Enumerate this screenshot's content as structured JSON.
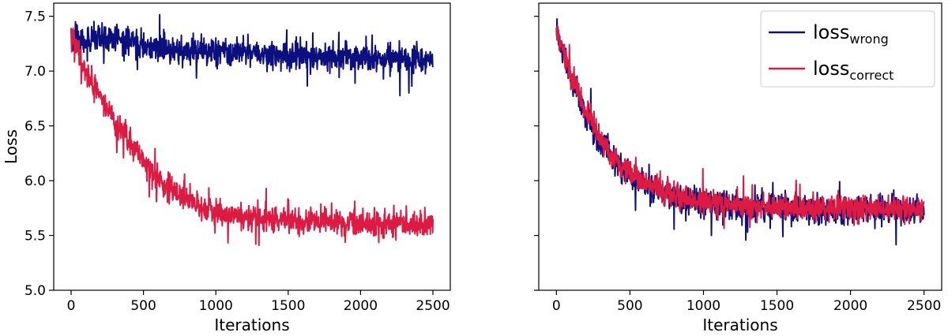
{
  "chart_data": [
    {
      "type": "line",
      "panel": "left",
      "xlabel": "Iterations",
      "ylabel": "Loss",
      "xlim": [
        -120,
        2620
      ],
      "ylim": [
        5.0,
        7.62
      ],
      "xticks": [
        0,
        500,
        1000,
        1500,
        2000,
        2500
      ],
      "xtick_labels": [
        "0",
        "500",
        "1000",
        "1500",
        "2000",
        "2500"
      ],
      "yticks": [
        5.0,
        5.5,
        6.0,
        6.5,
        7.0,
        7.5
      ],
      "ytick_labels": [
        "5.0",
        "5.5",
        "6.0",
        "6.5",
        "7.0",
        "7.5"
      ],
      "grid": false,
      "series": [
        {
          "name": "loss_wrong",
          "color": "#0c0f7e",
          "x": [
            0,
            100,
            200,
            300,
            400,
            500,
            600,
            700,
            800,
            900,
            1000,
            1100,
            1200,
            1300,
            1400,
            1500,
            1600,
            1700,
            1800,
            1900,
            2000,
            2100,
            2200,
            2300,
            2400,
            2500
          ],
          "y": [
            7.33,
            7.26,
            7.29,
            7.3,
            7.27,
            7.24,
            7.2,
            7.2,
            7.18,
            7.18,
            7.17,
            7.17,
            7.16,
            7.16,
            7.15,
            7.15,
            7.14,
            7.14,
            7.13,
            7.13,
            7.12,
            7.12,
            7.12,
            7.11,
            7.11,
            7.11
          ],
          "noise": 0.11
        },
        {
          "name": "loss_correct",
          "color": "#dc1a42",
          "x": [
            0,
            100,
            200,
            300,
            400,
            500,
            600,
            700,
            800,
            900,
            1000,
            1100,
            1200,
            1300,
            1400,
            1500,
            1600,
            1700,
            1800,
            1900,
            2000,
            2100,
            2200,
            2300,
            2400,
            2500
          ],
          "y": [
            7.35,
            7.0,
            6.76,
            6.55,
            6.35,
            6.18,
            6.03,
            5.92,
            5.82,
            5.76,
            5.72,
            5.69,
            5.67,
            5.66,
            5.65,
            5.64,
            5.63,
            5.63,
            5.62,
            5.62,
            5.61,
            5.61,
            5.61,
            5.6,
            5.6,
            5.6
          ],
          "noise": 0.1
        }
      ]
    },
    {
      "type": "line",
      "panel": "right",
      "xlabel": "Iterations",
      "ylabel": "",
      "xlim": [
        -120,
        2620
      ],
      "ylim": [
        5.0,
        7.62
      ],
      "xticks": [
        0,
        500,
        1000,
        1500,
        2000,
        2500
      ],
      "xtick_labels": [
        "0",
        "500",
        "1000",
        "1500",
        "2000",
        "2500"
      ],
      "yticks": [
        5.0,
        5.5,
        6.0,
        6.5,
        7.0,
        7.5
      ],
      "ytick_labels": [],
      "grid": false,
      "legend": {
        "placement": "top-right",
        "entries": [
          {
            "series": "loss_wrong",
            "text": "loss",
            "subscript": "wrong",
            "color": "#0c0f7e"
          },
          {
            "series": "loss_correct",
            "text": "loss",
            "subscript": "correct",
            "color": "#dc1a42"
          }
        ]
      },
      "series": [
        {
          "name": "loss_wrong",
          "color": "#0c0f7e",
          "x": [
            0,
            100,
            200,
            300,
            400,
            500,
            600,
            700,
            800,
            900,
            1000,
            1100,
            1200,
            1300,
            1400,
            1500,
            1600,
            1700,
            1800,
            1900,
            2000,
            2100,
            2200,
            2300,
            2400,
            2500
          ],
          "y": [
            7.35,
            6.95,
            6.6,
            6.35,
            6.18,
            6.05,
            5.97,
            5.9,
            5.85,
            5.82,
            5.8,
            5.78,
            5.77,
            5.76,
            5.76,
            5.75,
            5.75,
            5.74,
            5.74,
            5.74,
            5.74,
            5.74,
            5.73,
            5.73,
            5.73,
            5.73
          ],
          "noise": 0.11
        },
        {
          "name": "loss_correct",
          "color": "#dc1a42",
          "x": [
            0,
            100,
            200,
            300,
            400,
            500,
            600,
            700,
            800,
            900,
            1000,
            1100,
            1200,
            1300,
            1400,
            1500,
            1600,
            1700,
            1800,
            1900,
            2000,
            2100,
            2200,
            2300,
            2400,
            2500
          ],
          "y": [
            7.35,
            6.97,
            6.63,
            6.38,
            6.2,
            6.07,
            5.98,
            5.91,
            5.86,
            5.83,
            5.81,
            5.79,
            5.78,
            5.77,
            5.77,
            5.76,
            5.76,
            5.75,
            5.75,
            5.75,
            5.75,
            5.75,
            5.74,
            5.74,
            5.74,
            5.74
          ],
          "noise": 0.1
        }
      ]
    }
  ]
}
